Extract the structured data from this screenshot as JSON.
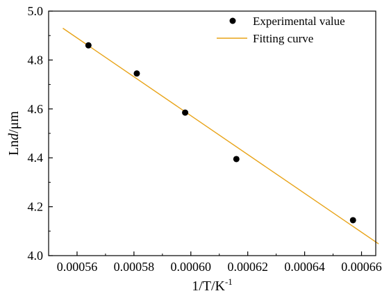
{
  "chart_data": {
    "type": "scatter",
    "title": "",
    "xlabel": {
      "base": "1/T/K",
      "superscript": "-1"
    },
    "ylabel": {
      "prefix": "Ln",
      "italic": "d",
      "suffix": "/μm"
    },
    "xlim": [
      0.00055,
      0.000665
    ],
    "ylim": [
      4.0,
      5.0
    ],
    "xticks": [
      0.00056,
      0.00058,
      0.0006,
      0.00062,
      0.00064,
      0.00066
    ],
    "xtick_labels": [
      "0.00056",
      "0.00058",
      "0.00060",
      "0.00062",
      "0.00064",
      "0.00066"
    ],
    "yticks": [
      4.0,
      4.2,
      4.4,
      4.6,
      4.8,
      5.0
    ],
    "ytick_labels": [
      "4.0",
      "4.2",
      "4.4",
      "4.6",
      "4.8",
      "5.0"
    ],
    "grid": false,
    "legend_position": "top-right",
    "series": [
      {
        "name": "Experimental value",
        "kind": "scatter",
        "color": "#000000",
        "x": [
          0.000564,
          0.000581,
          0.000598,
          0.000616,
          0.000657
        ],
        "y": [
          4.86,
          4.745,
          4.585,
          4.395,
          4.145
        ]
      },
      {
        "name": "Fitting curve",
        "kind": "line",
        "color": "#E8A317",
        "x": [
          0.000555,
          0.000666
        ],
        "y": [
          4.93,
          4.048
        ]
      }
    ]
  }
}
